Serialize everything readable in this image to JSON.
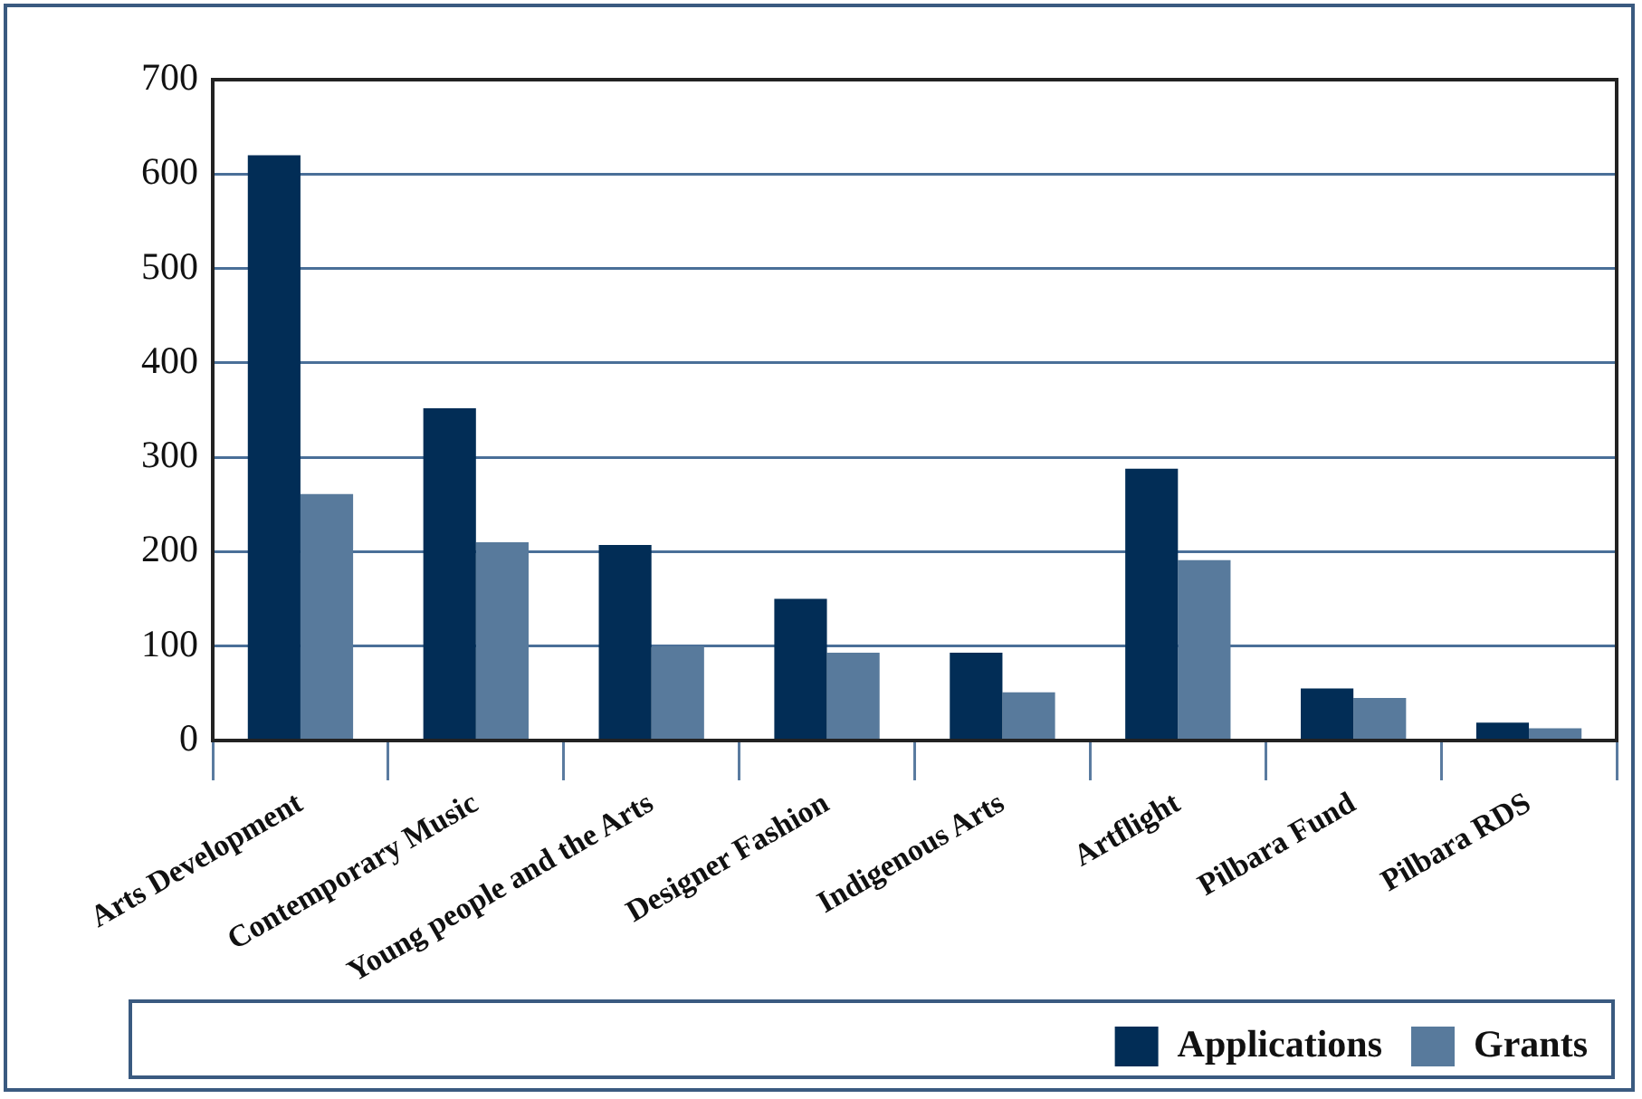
{
  "chart_data": {
    "type": "bar",
    "categories": [
      "Arts Development",
      "Contemporary Music",
      "Young people and the Arts",
      "Designer Fashion",
      "Indigenous Arts",
      "Artflight",
      "Pilbara Fund",
      "Pilbara RDS"
    ],
    "series": [
      {
        "name": "Applications",
        "color": "#022d56",
        "values": [
          620,
          352,
          207,
          150,
          93,
          288,
          55,
          19
        ]
      },
      {
        "name": "Grants",
        "color": "#587a9c",
        "values": [
          261,
          210,
          100,
          93,
          51,
          191,
          45,
          13
        ]
      }
    ],
    "ylim": [
      0,
      700
    ],
    "yticks": [
      0,
      100,
      200,
      300,
      400,
      500,
      600,
      700
    ],
    "grid": "y",
    "legend": "bottom right"
  }
}
